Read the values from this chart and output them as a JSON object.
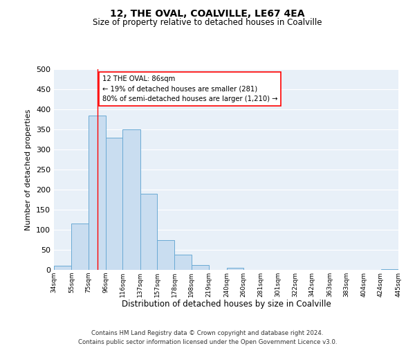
{
  "title": "12, THE OVAL, COALVILLE, LE67 4EA",
  "subtitle": "Size of property relative to detached houses in Coalville",
  "xlabel": "Distribution of detached houses by size in Coalville",
  "ylabel": "Number of detached properties",
  "bar_color": "#c9ddf0",
  "bar_edge_color": "#6aaad4",
  "background_color": "#e8f0f8",
  "grid_color": "#ffffff",
  "red_line_x": 86,
  "annotation_title": "12 THE OVAL: 86sqm",
  "annotation_line1": "← 19% of detached houses are smaller (281)",
  "annotation_line2": "80% of semi-detached houses are larger (1,210) →",
  "bins": [
    34,
    55,
    75,
    96,
    116,
    137,
    157,
    178,
    198,
    219,
    240,
    260,
    281,
    301,
    322,
    342,
    363,
    383,
    404,
    424,
    445
  ],
  "counts": [
    10,
    115,
    385,
    330,
    350,
    190,
    75,
    38,
    12,
    0,
    5,
    0,
    0,
    0,
    0,
    0,
    0,
    0,
    0,
    2
  ],
  "ylim": [
    0,
    500
  ],
  "yticks": [
    0,
    50,
    100,
    150,
    200,
    250,
    300,
    350,
    400,
    450,
    500
  ],
  "footnote1": "Contains HM Land Registry data © Crown copyright and database right 2024.",
  "footnote2": "Contains public sector information licensed under the Open Government Licence v3.0."
}
